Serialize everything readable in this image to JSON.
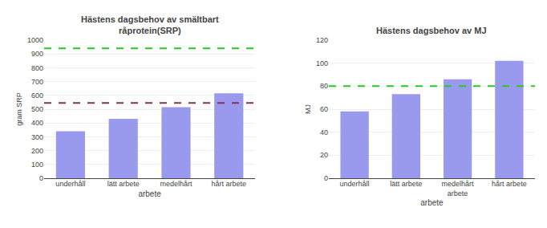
{
  "chart_data": [
    {
      "type": "bar",
      "title": "Hästens dagsbehov av smältbart\nråprotein(SRP)",
      "ylabel": "gram SRP",
      "xlabel": "arbete",
      "categories": [
        "underhåll",
        "lätt arbete",
        "medelhårt",
        "hårt arbete"
      ],
      "values": [
        340,
        430,
        515,
        615
      ],
      "color": "#9999ee",
      "ylim": [
        0,
        1000
      ],
      "yticks": [
        0,
        100,
        200,
        300,
        400,
        500,
        600,
        700,
        800,
        900,
        1000
      ],
      "grid": true,
      "hlines": [
        {
          "value": 940,
          "color": "#22cc22",
          "line_style": "dashed"
        },
        {
          "value": 545,
          "color": "#883355",
          "line_style": "dashed"
        }
      ]
    },
    {
      "type": "bar",
      "title": "Hästens dagsbehov av MJ",
      "ylabel": "MJ",
      "xlabel": "arbete",
      "categories": [
        "underhåll",
        "lätt arbete",
        "medelhårt\narbete",
        "hårt arbete"
      ],
      "values": [
        58,
        73,
        86,
        102
      ],
      "color": "#9999ee",
      "ylim": [
        0,
        120
      ],
      "yticks": [
        0,
        20,
        40,
        60,
        80,
        100,
        120
      ],
      "grid": true,
      "hlines": [
        {
          "value": 80,
          "color": "#22cc22",
          "line_style": "dashed"
        }
      ]
    }
  ]
}
